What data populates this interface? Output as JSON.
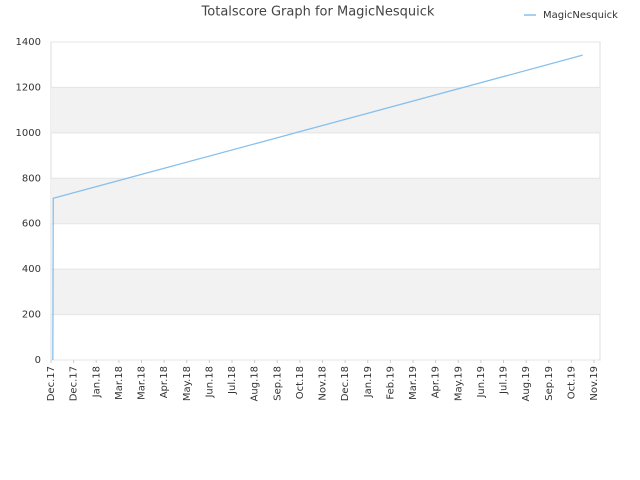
{
  "chart_data": {
    "type": "line",
    "title": "Totalscore Graph for MagicNesquick",
    "x": [
      0.08,
      0.1,
      23.5
    ],
    "series": [
      {
        "name": "MagicNesquick",
        "color": "#88c0ec",
        "values": [
          0,
          712,
          1342
        ]
      }
    ],
    "xlim": [
      0,
      24
    ],
    "xticks": [
      {
        "value": 0,
        "label": "Dec.17"
      },
      {
        "value": 1,
        "label": "Dec.17"
      },
      {
        "value": 2,
        "label": "Jan.18"
      },
      {
        "value": 3,
        "label": "Mar.18"
      },
      {
        "value": 4,
        "label": "Mar.18"
      },
      {
        "value": 5,
        "label": "Apr.18"
      },
      {
        "value": 6,
        "label": "May.18"
      },
      {
        "value": 7,
        "label": "Jun.18"
      },
      {
        "value": 8,
        "label": "Jul.18"
      },
      {
        "value": 9,
        "label": "Aug.18"
      },
      {
        "value": 10,
        "label": "Sep.18"
      },
      {
        "value": 11,
        "label": "Oct.18"
      },
      {
        "value": 12,
        "label": "Nov.18"
      },
      {
        "value": 13,
        "label": "Dec.18"
      },
      {
        "value": 14,
        "label": "Jan.19"
      },
      {
        "value": 15,
        "label": "Feb.19"
      },
      {
        "value": 16,
        "label": "Mar.19"
      },
      {
        "value": 17,
        "label": "Apr.19"
      },
      {
        "value": 18,
        "label": "May.19"
      },
      {
        "value": 19,
        "label": "Jun.19"
      },
      {
        "value": 20,
        "label": "Jul.19"
      },
      {
        "value": 21,
        "label": "Aug.19"
      },
      {
        "value": 22,
        "label": "Sep.19"
      },
      {
        "value": 23,
        "label": "Oct.19"
      },
      {
        "value": 24,
        "label": "Nov.19"
      }
    ],
    "ylim": [
      0,
      1400
    ],
    "yticks": [
      0,
      200,
      400,
      600,
      800,
      1000,
      1200,
      1400
    ],
    "grid": true,
    "legend": "top-right"
  }
}
